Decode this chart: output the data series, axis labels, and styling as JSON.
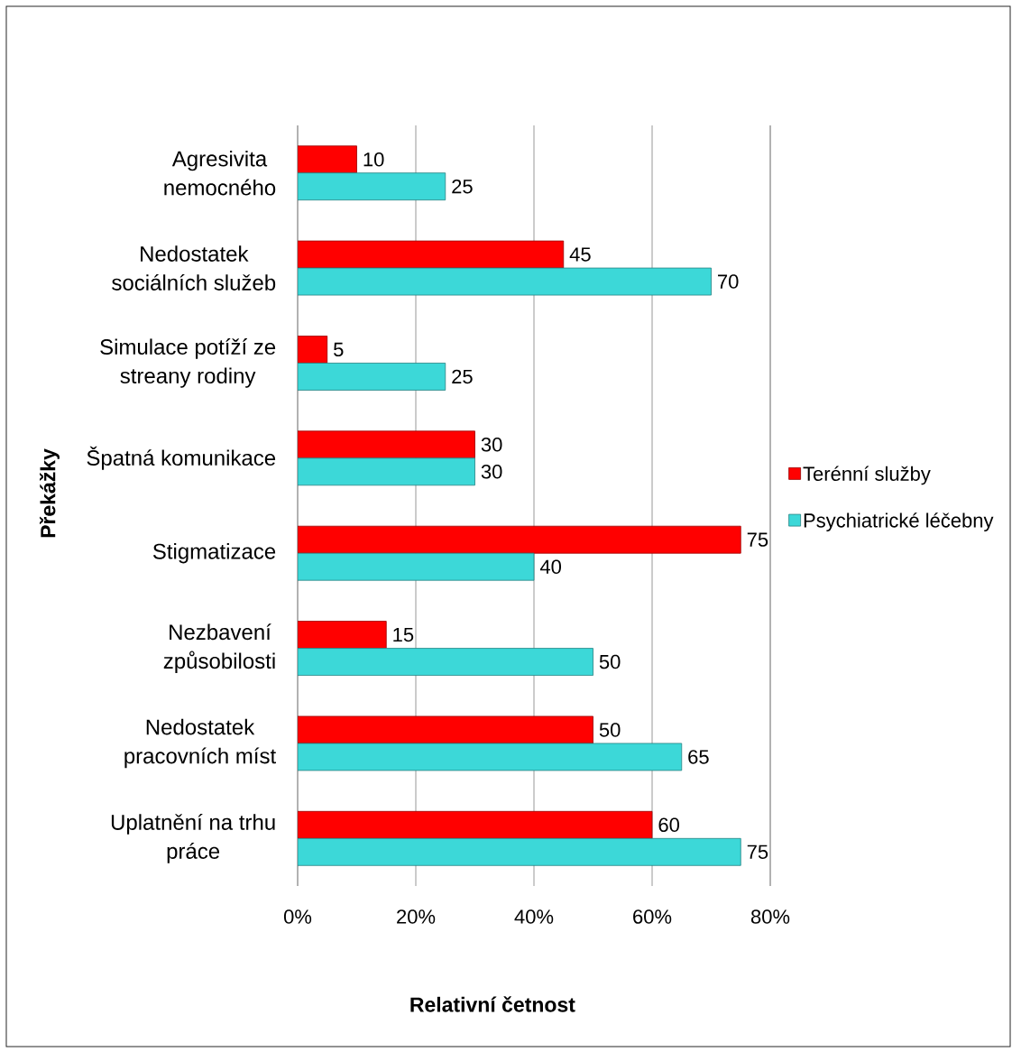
{
  "chart_data": {
    "type": "bar",
    "orientation": "horizontal",
    "xlabel": "Relativní četnost",
    "ylabel": "Překážky",
    "categories": [
      "Agresivita nemocného",
      "Nedostatek sociálních služeb",
      "Simulace potíží ze streany rodiny",
      "Špatná komunikace",
      "Stigmatizace",
      "Nezbavení způsobilosti",
      "Nedostatek pracovních míst",
      "Uplatnění na trhu práce"
    ],
    "series": [
      {
        "name": "Terénní služby",
        "color": "#ff0000",
        "values": [
          10,
          45,
          5,
          30,
          75,
          15,
          50,
          60
        ]
      },
      {
        "name": "Psychiatrické léčebny",
        "color": "#3cd8d8",
        "values": [
          25,
          70,
          25,
          30,
          40,
          50,
          65,
          75
        ]
      }
    ],
    "xlim": [
      0,
      80
    ],
    "xticks": [
      {
        "value": 0,
        "label": "0%"
      },
      {
        "value": 20,
        "label": "20%"
      },
      {
        "value": 40,
        "label": "40%"
      },
      {
        "value": 60,
        "label": "60%"
      },
      {
        "value": 80,
        "label": "80%"
      }
    ],
    "grid": "x",
    "legend": "right",
    "data_labels": true
  }
}
